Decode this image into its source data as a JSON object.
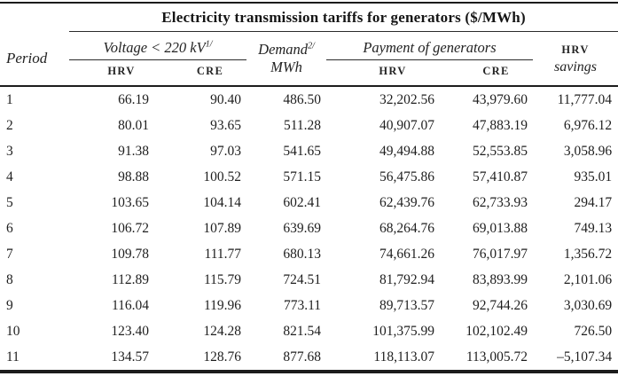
{
  "table": {
    "title": "Electricity transmission tariffs for generators ($/MWh)",
    "period_header": "Period",
    "voltage_group": {
      "label": "Voltage < 220 kV",
      "sup": "1/"
    },
    "demand_header": {
      "label": "Demand",
      "sup": "2/",
      "unit": "MWh"
    },
    "payment_group": "Payment of generators",
    "savings_header": {
      "line1": "HRV",
      "line2": "savings"
    },
    "subheaders": {
      "voltage_hrv": "HRV",
      "voltage_cre": "CRE",
      "payment_hrv": "HRV",
      "payment_cre": "CRE"
    },
    "rows": [
      {
        "period": "1",
        "voltage_hrv": "66.19",
        "voltage_cre": "90.40",
        "demand": "486.50",
        "payment_hrv": "32,202.56",
        "payment_cre": "43,979.60",
        "savings": "11,777.04"
      },
      {
        "period": "2",
        "voltage_hrv": "80.01",
        "voltage_cre": "93.65",
        "demand": "511.28",
        "payment_hrv": "40,907.07",
        "payment_cre": "47,883.19",
        "savings": "6,976.12"
      },
      {
        "period": "3",
        "voltage_hrv": "91.38",
        "voltage_cre": "97.03",
        "demand": "541.65",
        "payment_hrv": "49,494.88",
        "payment_cre": "52,553.85",
        "savings": "3,058.96"
      },
      {
        "period": "4",
        "voltage_hrv": "98.88",
        "voltage_cre": "100.52",
        "demand": "571.15",
        "payment_hrv": "56,475.86",
        "payment_cre": "57,410.87",
        "savings": "935.01"
      },
      {
        "period": "5",
        "voltage_hrv": "103.65",
        "voltage_cre": "104.14",
        "demand": "602.41",
        "payment_hrv": "62,439.76",
        "payment_cre": "62,733.93",
        "savings": "294.17"
      },
      {
        "period": "6",
        "voltage_hrv": "106.72",
        "voltage_cre": "107.89",
        "demand": "639.69",
        "payment_hrv": "68,264.76",
        "payment_cre": "69,013.88",
        "savings": "749.13"
      },
      {
        "period": "7",
        "voltage_hrv": "109.78",
        "voltage_cre": "111.77",
        "demand": "680.13",
        "payment_hrv": "74,661.26",
        "payment_cre": "76,017.97",
        "savings": "1,356.72"
      },
      {
        "period": "8",
        "voltage_hrv": "112.89",
        "voltage_cre": "115.79",
        "demand": "724.51",
        "payment_hrv": "81,792.94",
        "payment_cre": "83,893.99",
        "savings": "2,101.06"
      },
      {
        "period": "9",
        "voltage_hrv": "116.04",
        "voltage_cre": "119.96",
        "demand": "773.11",
        "payment_hrv": "89,713.57",
        "payment_cre": "92,744.26",
        "savings": "3,030.69"
      },
      {
        "period": "10",
        "voltage_hrv": "123.40",
        "voltage_cre": "124.28",
        "demand": "821.54",
        "payment_hrv": "101,375.99",
        "payment_cre": "102,102.49",
        "savings": "726.50"
      },
      {
        "period": "11",
        "voltage_hrv": "134.57",
        "voltage_cre": "128.76",
        "demand": "877.68",
        "payment_hrv": "118,113.07",
        "payment_cre": "113,005.72",
        "savings": "–5,107.34"
      }
    ]
  }
}
